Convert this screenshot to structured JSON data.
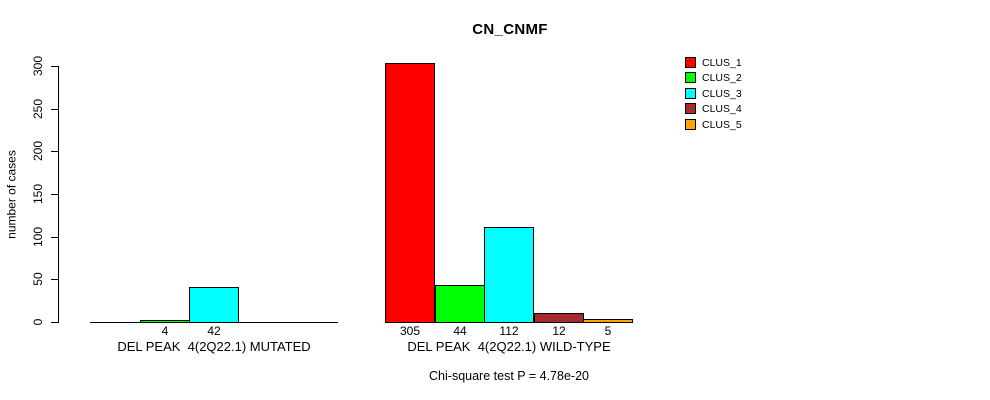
{
  "title": "CN_CNMF",
  "chart_data": {
    "type": "bar",
    "title": "CN_CNMF",
    "ylabel": "number of cases",
    "xlabel": "",
    "ylim": [
      0,
      300
    ],
    "yticks": [
      0,
      50,
      100,
      150,
      200,
      250,
      300
    ],
    "grid": false,
    "legend_position": "right",
    "series": [
      "CLUS_1",
      "CLUS_2",
      "CLUS_3",
      "CLUS_4",
      "CLUS_5"
    ],
    "colors": [
      "#ff0000",
      "#00ff00",
      "#00ffff",
      "#a52a2a",
      "#ffa500"
    ],
    "groups": [
      {
        "label": "DEL PEAK  4(2Q22.1) MUTATED",
        "values": [
          0,
          4,
          42,
          0,
          0
        ],
        "bar_labels": [
          "",
          "4",
          "42",
          "",
          ""
        ]
      },
      {
        "label": "DEL PEAK  4(2Q22.1) WILD-TYPE",
        "values": [
          305,
          44,
          112,
          12,
          5
        ],
        "bar_labels": [
          "305",
          "44",
          "112",
          "12",
          "5"
        ]
      }
    ],
    "legend": [
      {
        "label": "CLUS_1",
        "color": "#ff0000"
      },
      {
        "label": "CLUS_2",
        "color": "#00ff00"
      },
      {
        "label": "CLUS_3",
        "color": "#00ffff"
      },
      {
        "label": "CLUS_4",
        "color": "#a52a2a"
      },
      {
        "label": "CLUS_5",
        "color": "#ffa500"
      }
    ],
    "annotation": "Chi-square test P = 4.78e-20"
  }
}
